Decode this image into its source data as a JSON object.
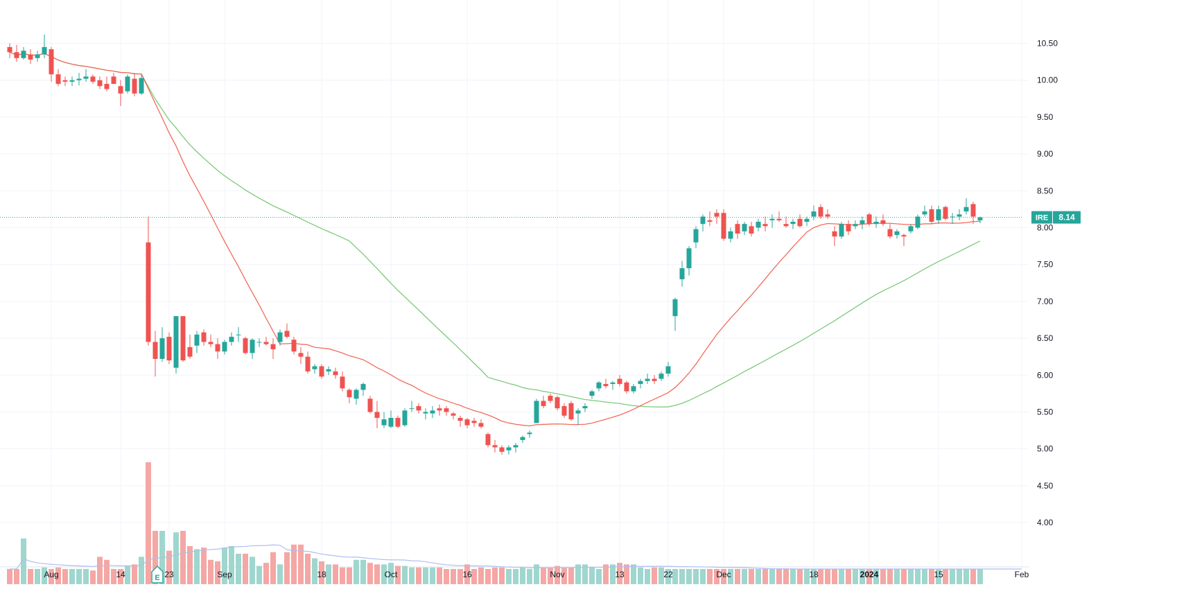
{
  "chart_data": {
    "type": "candlestick",
    "symbol": "IRE",
    "last_price": "8.14",
    "colors": {
      "up": "#26a69a",
      "down": "#ef5350",
      "up_volume": "#9fd6ce",
      "down_volume": "#f4a7a4",
      "ma_fast": "#f26b5b",
      "ma_slow": "#7dc97a",
      "volume_ma": "#aebff0",
      "price_line": "#26a69a",
      "grid": "#f0f3fa"
    },
    "y_axis": {
      "range": [
        3.85,
        10.9
      ],
      "ticks": [
        "10.50",
        "10.00",
        "9.50",
        "9.00",
        "8.50",
        "8.00",
        "7.50",
        "7.00",
        "6.50",
        "6.00",
        "5.50",
        "5.00",
        "4.50",
        "4.00"
      ]
    },
    "x_axis": {
      "labels": [
        {
          "label": "Aug",
          "i": 6,
          "bold": false
        },
        {
          "label": "14",
          "i": 16,
          "bold": false
        },
        {
          "label": "23",
          "i": 23,
          "bold": false
        },
        {
          "label": "Sep",
          "i": 31,
          "bold": false
        },
        {
          "label": "18",
          "i": 45,
          "bold": false
        },
        {
          "label": "Oct",
          "i": 55,
          "bold": false
        },
        {
          "label": "16",
          "i": 66,
          "bold": false
        },
        {
          "label": "Nov",
          "i": 79,
          "bold": false
        },
        {
          "label": "13",
          "i": 88,
          "bold": false
        },
        {
          "label": "22",
          "i": 95,
          "bold": false
        },
        {
          "label": "Dec",
          "i": 103,
          "bold": false
        },
        {
          "label": "18",
          "i": 116,
          "bold": false
        },
        {
          "label": "2024",
          "i": 124,
          "bold": true
        },
        {
          "label": "15",
          "i": 134,
          "bold": false
        },
        {
          "label": "Feb",
          "i": 146,
          "bold": false
        }
      ]
    },
    "earnings_marker": {
      "label": "E",
      "i": 21
    },
    "candles": [
      [
        10.45,
        10.5,
        10.3,
        10.38
      ],
      [
        10.38,
        10.48,
        10.25,
        10.3
      ],
      [
        10.3,
        10.45,
        10.28,
        10.4
      ],
      [
        10.35,
        10.42,
        10.22,
        10.28
      ],
      [
        10.3,
        10.4,
        10.25,
        10.35
      ],
      [
        10.35,
        10.62,
        10.3,
        10.45
      ],
      [
        10.42,
        10.45,
        9.98,
        10.08
      ],
      [
        10.08,
        10.15,
        9.92,
        9.95
      ],
      [
        10.0,
        10.05,
        9.92,
        9.98
      ],
      [
        9.98,
        10.05,
        9.92,
        10.0
      ],
      [
        10.0,
        10.1,
        9.93,
        10.02
      ],
      [
        10.02,
        10.15,
        9.98,
        10.05
      ],
      [
        10.05,
        10.08,
        9.95,
        9.98
      ],
      [
        10.0,
        10.05,
        9.88,
        9.92
      ],
      [
        9.95,
        10.05,
        9.85,
        9.88
      ],
      [
        10.05,
        10.1,
        9.95,
        9.95
      ],
      [
        9.92,
        10.0,
        9.65,
        9.82
      ],
      [
        9.85,
        10.08,
        9.82,
        10.05
      ],
      [
        10.02,
        10.1,
        9.78,
        9.82
      ],
      [
        9.82,
        10.08,
        9.8,
        10.03
      ],
      [
        7.8,
        8.15,
        6.4,
        6.45
      ],
      [
        6.45,
        6.6,
        5.98,
        6.22
      ],
      [
        6.22,
        6.65,
        6.18,
        6.5
      ],
      [
        6.52,
        6.58,
        6.15,
        6.2
      ],
      [
        6.1,
        6.8,
        6.02,
        6.8
      ],
      [
        6.8,
        6.8,
        6.18,
        6.2
      ],
      [
        6.38,
        6.55,
        6.22,
        6.25
      ],
      [
        6.4,
        6.6,
        6.3,
        6.55
      ],
      [
        6.58,
        6.62,
        6.4,
        6.45
      ],
      [
        6.45,
        6.55,
        6.38,
        6.42
      ],
      [
        6.42,
        6.5,
        6.22,
        6.32
      ],
      [
        6.32,
        6.48,
        6.28,
        6.45
      ],
      [
        6.45,
        6.58,
        6.4,
        6.52
      ],
      [
        6.55,
        6.65,
        6.45,
        6.55
      ],
      [
        6.5,
        6.52,
        6.28,
        6.3
      ],
      [
        6.3,
        6.5,
        6.22,
        6.48
      ],
      [
        6.45,
        6.5,
        6.38,
        6.45
      ],
      [
        6.45,
        6.52,
        6.4,
        6.42
      ],
      [
        6.42,
        6.5,
        6.22,
        6.35
      ],
      [
        6.45,
        6.62,
        6.4,
        6.58
      ],
      [
        6.6,
        6.7,
        6.5,
        6.52
      ],
      [
        6.48,
        6.52,
        6.28,
        6.32
      ],
      [
        6.3,
        6.38,
        6.15,
        6.25
      ],
      [
        6.25,
        6.32,
        6.02,
        6.05
      ],
      [
        6.08,
        6.15,
        6.02,
        6.12
      ],
      [
        6.12,
        6.15,
        5.95,
        5.98
      ],
      [
        6.05,
        6.12,
        6.0,
        6.08
      ],
      [
        6.05,
        6.1,
        5.95,
        6.0
      ],
      [
        5.98,
        6.05,
        5.78,
        5.82
      ],
      [
        5.8,
        5.82,
        5.62,
        5.7
      ],
      [
        5.68,
        5.82,
        5.6,
        5.8
      ],
      [
        5.8,
        5.9,
        5.72,
        5.88
      ],
      [
        5.68,
        5.72,
        5.48,
        5.5
      ],
      [
        5.5,
        5.65,
        5.28,
        5.42
      ],
      [
        5.32,
        5.5,
        5.28,
        5.4
      ],
      [
        5.3,
        5.52,
        5.28,
        5.42
      ],
      [
        5.42,
        5.45,
        5.28,
        5.3
      ],
      [
        5.32,
        5.55,
        5.3,
        5.52
      ],
      [
        5.55,
        5.65,
        5.5,
        5.55
      ],
      [
        5.58,
        5.62,
        5.48,
        5.52
      ],
      [
        5.48,
        5.55,
        5.4,
        5.5
      ],
      [
        5.48,
        5.58,
        5.42,
        5.52
      ],
      [
        5.55,
        5.6,
        5.45,
        5.52
      ],
      [
        5.55,
        5.58,
        5.45,
        5.5
      ],
      [
        5.48,
        5.5,
        5.4,
        5.45
      ],
      [
        5.42,
        5.45,
        5.3,
        5.38
      ],
      [
        5.4,
        5.42,
        5.28,
        5.32
      ],
      [
        5.38,
        5.42,
        5.3,
        5.35
      ],
      [
        5.35,
        5.4,
        5.28,
        5.3
      ],
      [
        5.2,
        5.22,
        5.02,
        5.05
      ],
      [
        5.05,
        5.12,
        4.95,
        5.02
      ],
      [
        5.02,
        5.05,
        4.92,
        4.96
      ],
      [
        4.98,
        5.05,
        4.92,
        5.02
      ],
      [
        5.02,
        5.08,
        4.95,
        5.05
      ],
      [
        5.12,
        5.18,
        5.08,
        5.16
      ],
      [
        5.2,
        5.25,
        5.15,
        5.22
      ],
      [
        5.35,
        5.68,
        5.35,
        5.65
      ],
      [
        5.65,
        5.72,
        5.55,
        5.58
      ],
      [
        5.72,
        5.75,
        5.62,
        5.65
      ],
      [
        5.7,
        5.72,
        5.52,
        5.55
      ],
      [
        5.58,
        5.62,
        5.42,
        5.45
      ],
      [
        5.62,
        5.65,
        5.38,
        5.4
      ],
      [
        5.48,
        5.55,
        5.32,
        5.52
      ],
      [
        5.55,
        5.62,
        5.5,
        5.58
      ],
      [
        5.72,
        5.8,
        5.68,
        5.78
      ],
      [
        5.82,
        5.92,
        5.78,
        5.9
      ],
      [
        5.88,
        5.95,
        5.82,
        5.85
      ],
      [
        5.88,
        5.92,
        5.8,
        5.9
      ],
      [
        5.95,
        6.0,
        5.85,
        5.88
      ],
      [
        5.9,
        5.92,
        5.75,
        5.78
      ],
      [
        5.78,
        5.88,
        5.75,
        5.85
      ],
      [
        5.88,
        5.95,
        5.82,
        5.92
      ],
      [
        5.92,
        6.02,
        5.88,
        5.95
      ],
      [
        5.95,
        6.0,
        5.88,
        5.92
      ],
      [
        5.95,
        6.05,
        5.92,
        6.02
      ],
      [
        6.02,
        6.18,
        5.98,
        6.12
      ],
      [
        6.8,
        7.05,
        6.6,
        7.03
      ],
      [
        7.3,
        7.55,
        7.2,
        7.45
      ],
      [
        7.45,
        7.75,
        7.35,
        7.72
      ],
      [
        7.8,
        8.02,
        7.72,
        7.98
      ],
      [
        8.05,
        8.18,
        7.95,
        8.15
      ],
      [
        8.1,
        8.22,
        8.02,
        8.08
      ],
      [
        8.2,
        8.25,
        8.05,
        8.15
      ],
      [
        8.2,
        8.25,
        7.82,
        7.85
      ],
      [
        7.85,
        8.0,
        7.8,
        7.95
      ],
      [
        8.05,
        8.1,
        7.85,
        7.92
      ],
      [
        7.95,
        8.08,
        7.9,
        8.05
      ],
      [
        8.02,
        8.08,
        7.88,
        7.92
      ],
      [
        8.0,
        8.12,
        7.95,
        8.08
      ],
      [
        8.05,
        8.15,
        7.95,
        8.02
      ],
      [
        8.1,
        8.18,
        8.0,
        8.12
      ],
      [
        8.12,
        8.22,
        8.08,
        8.1
      ],
      [
        8.05,
        8.15,
        8.0,
        8.02
      ],
      [
        8.05,
        8.12,
        7.98,
        8.08
      ],
      [
        8.12,
        8.18,
        8.0,
        8.02
      ],
      [
        8.08,
        8.15,
        8.02,
        8.12
      ],
      [
        8.15,
        8.3,
        8.1,
        8.22
      ],
      [
        8.28,
        8.32,
        8.12,
        8.15
      ],
      [
        8.18,
        8.25,
        8.12,
        8.15
      ],
      [
        7.95,
        8.02,
        7.75,
        7.88
      ],
      [
        7.88,
        8.08,
        7.85,
        8.05
      ],
      [
        8.05,
        8.1,
        7.9,
        7.95
      ],
      [
        8.02,
        8.1,
        7.98,
        8.05
      ],
      [
        8.05,
        8.15,
        7.98,
        8.1
      ],
      [
        8.18,
        8.2,
        8.02,
        8.05
      ],
      [
        8.05,
        8.15,
        8.0,
        8.08
      ],
      [
        8.1,
        8.18,
        8.02,
        8.05
      ],
      [
        7.98,
        8.05,
        7.85,
        7.88
      ],
      [
        7.9,
        7.98,
        7.85,
        7.95
      ],
      [
        7.9,
        7.92,
        7.75,
        7.88
      ],
      [
        7.95,
        8.05,
        7.92,
        8.02
      ],
      [
        8.0,
        8.18,
        7.98,
        8.15
      ],
      [
        8.18,
        8.3,
        8.15,
        8.22
      ],
      [
        8.25,
        8.3,
        8.05,
        8.08
      ],
      [
        8.1,
        8.3,
        8.05,
        8.25
      ],
      [
        8.28,
        8.3,
        8.1,
        8.12
      ],
      [
        8.15,
        8.2,
        8.05,
        8.15
      ],
      [
        8.15,
        8.25,
        8.1,
        8.18
      ],
      [
        8.22,
        8.4,
        8.18,
        8.28
      ],
      [
        8.32,
        8.35,
        8.05,
        8.15
      ],
      [
        8.1,
        8.15,
        8.06,
        8.14
      ]
    ],
    "volume_bars": [
      1,
      1,
      3,
      1,
      1,
      1.1,
      1,
      1.1,
      1,
      1,
      1,
      1,
      0.9,
      1.8,
      1.6,
      1,
      1,
      1.2,
      1.3,
      1.8,
      8,
      3.5,
      3.5,
      2.2,
      3.4,
      3.5,
      2.5,
      2.3,
      2.4,
      1.6,
      1.5,
      2.4,
      2.5,
      2,
      2,
      1.8,
      1.2,
      1.4,
      2.1,
      1.3,
      2.1,
      2.6,
      2.6,
      2,
      1.7,
      1.5,
      1.3,
      1.3,
      1.1,
      1.1,
      1.6,
      1.6,
      1.4,
      1.3,
      1.3,
      1.4,
      1.2,
      1.2,
      1.1,
      1.1,
      1.1,
      1.1,
      1.1,
      1.0,
      1.0,
      1.0,
      1.3,
      1.0,
      1.1,
      1.0,
      1.1,
      1.1,
      1.0,
      1.0,
      1.1,
      1.0,
      1.3,
      1.1,
      1.1,
      1.2,
      1.1,
      1.1,
      1.3,
      1.3,
      1.1,
      1.0,
      1.3,
      1.3,
      1.4,
      1.3,
      1.3,
      1.1,
      1.0,
      1.1,
      1.1,
      1.0,
      1.0,
      1.0,
      1.0,
      1.0,
      1.0,
      1.0,
      1.0,
      1.0,
      1.0,
      1.0,
      1.0,
      1.0,
      1.0,
      1.0,
      1.0,
      1.0,
      1.0,
      1.0,
      1.0,
      1.0,
      1.0,
      1.0,
      1.0,
      1.0,
      1.0,
      1.0,
      1.0,
      1.0,
      1.0,
      1.0,
      1.0,
      1.0,
      1.0,
      1.0,
      1.0,
      1.0,
      1.0,
      1.0,
      1.0,
      1.0,
      1.0,
      1.0,
      1.0,
      1.0,
      1.0,
      1.0,
      1.0,
      1.0,
      1.0,
      1.0,
      1.0
    ]
  }
}
